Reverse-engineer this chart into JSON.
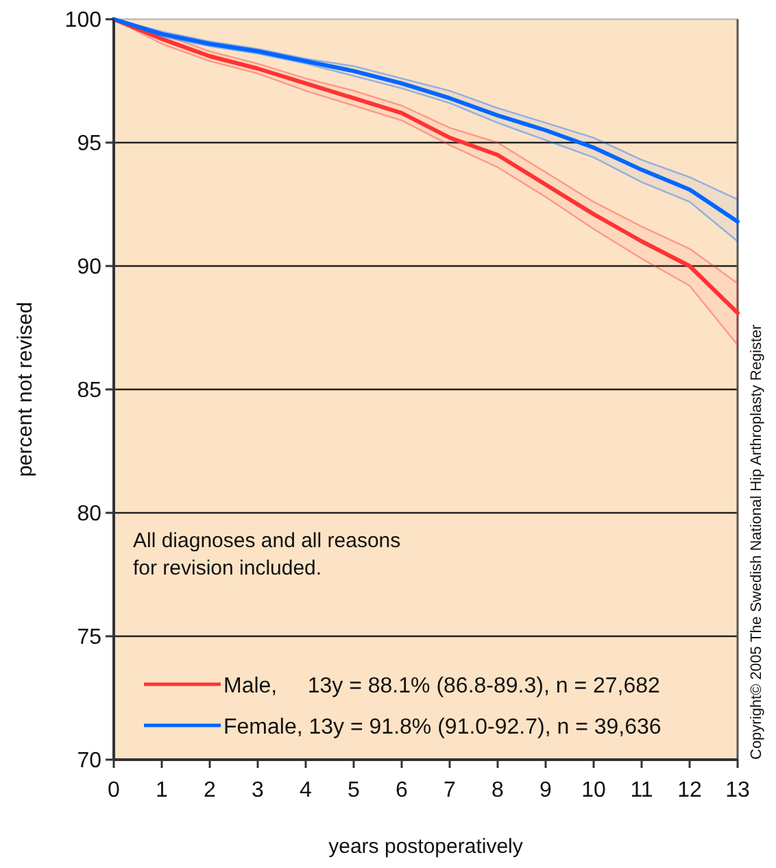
{
  "chart_data": {
    "type": "line",
    "xlabel": "years postoperatively",
    "ylabel": "percent not revised",
    "x": [
      0,
      1,
      2,
      3,
      4,
      5,
      6,
      7,
      8,
      9,
      10,
      11,
      12,
      13
    ],
    "xlim": [
      0,
      13
    ],
    "xticks": [
      0,
      1,
      2,
      3,
      4,
      5,
      6,
      7,
      8,
      9,
      10,
      11,
      12,
      13
    ],
    "ylim": [
      70,
      100
    ],
    "yticks": [
      70,
      75,
      80,
      85,
      90,
      95,
      100
    ],
    "grid": "y",
    "legend": "bottom left",
    "marker": "none",
    "line_style": "solid",
    "series": [
      {
        "name": "Male,     13y = 88.1% (86.8-89.3), n = 27,682",
        "color": "#ff3333",
        "values": [
          100,
          99.2,
          98.5,
          98.0,
          97.4,
          96.8,
          96.2,
          95.2,
          94.5,
          93.3,
          92.1,
          91.0,
          90.0,
          88.1
        ],
        "lower": [
          100,
          99.0,
          98.3,
          97.8,
          97.1,
          96.5,
          95.9,
          94.9,
          94.0,
          92.8,
          91.5,
          90.3,
          89.2,
          86.8
        ],
        "upper": [
          100,
          99.4,
          98.7,
          98.2,
          97.6,
          97.1,
          96.5,
          95.6,
          95.0,
          93.8,
          92.6,
          91.6,
          90.7,
          89.3
        ]
      },
      {
        "name": "Female, 13y = 91.8% (91.0-92.7), n = 39,636",
        "color": "#0066ff",
        "values": [
          100,
          99.4,
          99.0,
          98.7,
          98.3,
          97.9,
          97.4,
          96.8,
          96.1,
          95.5,
          94.8,
          93.9,
          93.1,
          91.8
        ],
        "lower": [
          100,
          99.3,
          98.9,
          98.6,
          98.2,
          97.7,
          97.2,
          96.6,
          95.8,
          95.1,
          94.4,
          93.4,
          92.6,
          91.0
        ],
        "upper": [
          100,
          99.5,
          99.1,
          98.8,
          98.4,
          98.1,
          97.6,
          97.1,
          96.4,
          95.8,
          95.2,
          94.3,
          93.6,
          92.7
        ]
      }
    ],
    "annotations": [
      "All diagnoses and all reasons\nfor revision included.",
      "Copyright© 2005 The Swedish National Hip Arthroplasty Register"
    ]
  }
}
